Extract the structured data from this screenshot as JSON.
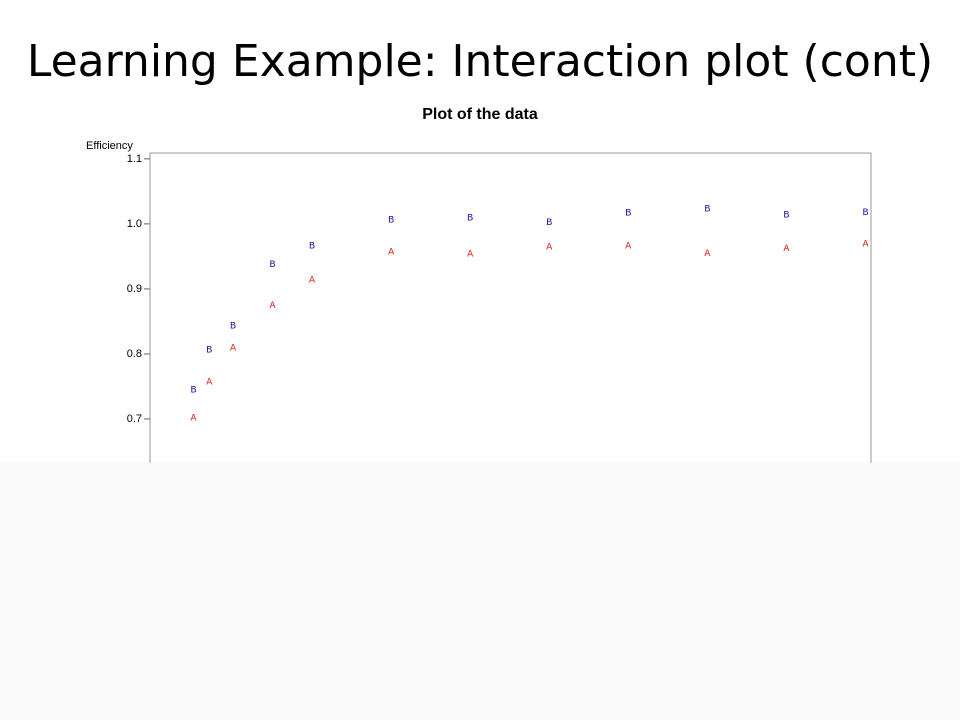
{
  "slide_title": "Learning Example: Interaction plot (cont)",
  "chart_data": {
    "type": "scatter",
    "title": "Plot of the data",
    "y_label": "Efficiency",
    "x": [
      3.5,
      3.7,
      4,
      4.5,
      5,
      6,
      7,
      8,
      9,
      10,
      11,
      12
    ],
    "xlim": [
      2.95,
      12.07
    ],
    "ylim": [
      0.6,
      1.109
    ],
    "yticks": [
      0.7,
      0.8,
      0.9,
      {
        "value": 1,
        "label": "1.0"
      },
      1.1
    ],
    "series": [
      {
        "name": "A",
        "color": "#e02020",
        "values": [
          0.702,
          0.757,
          0.809,
          0.875,
          0.914,
          0.957,
          0.954,
          0.965,
          0.966,
          0.955,
          0.962,
          0.969
        ]
      },
      {
        "name": "B",
        "color": "#1a1aa8",
        "values": [
          0.745,
          0.806,
          0.843,
          0.938,
          0.966,
          1.006,
          1.009,
          1.002,
          1.017,
          1.023,
          1.014,
          1.018
        ]
      }
    ]
  }
}
